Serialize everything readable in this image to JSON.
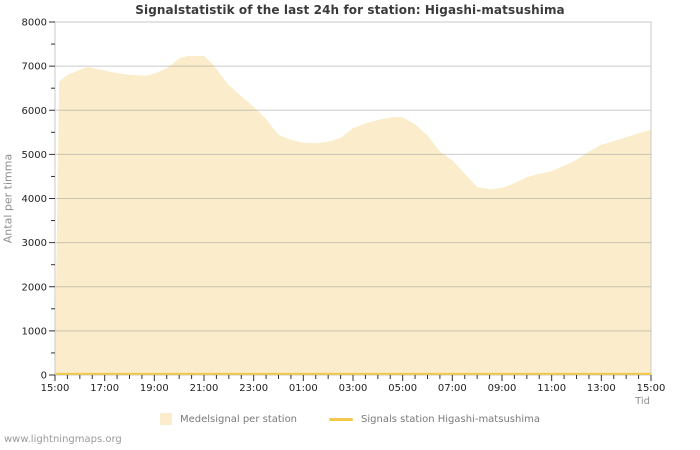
{
  "watermark": "www.lightningmaps.org",
  "chart_data": {
    "type": "area",
    "title": "Signalstatistik of the last 24h for station: Higashi-matsushima",
    "xlabel": "Tid",
    "ylabel": "Antal per timma",
    "ylim": [
      0,
      8000
    ],
    "y_major_step": 1000,
    "y_minor_step": 500,
    "x_range_minutes": 1440,
    "x_major_step_minutes": 120,
    "x_minor_step_minutes": 30,
    "x_tick_labels": [
      "15:00",
      "17:00",
      "19:00",
      "21:00",
      "23:00",
      "01:00",
      "03:00",
      "05:00",
      "07:00",
      "09:00",
      "11:00",
      "13:00",
      "15:00"
    ],
    "grid": true,
    "legend_position": "bottom",
    "colors": {
      "area_fill": "#FBEDCB",
      "station_line": "#F2C84B",
      "gridline": "#999999",
      "plot_border": "#C9C9C9",
      "tick": "#333333",
      "tick_label": "#222222",
      "muted_label": "#909090"
    },
    "series": [
      {
        "name": "Medelsignal per station",
        "kind": "area",
        "points": [
          [
            "15:00",
            400
          ],
          [
            "15:10",
            6650
          ],
          [
            "15:30",
            6800
          ],
          [
            "16:00",
            6920
          ],
          [
            "16:20",
            6980
          ],
          [
            "17:00",
            6900
          ],
          [
            "17:30",
            6840
          ],
          [
            "18:00",
            6800
          ],
          [
            "18:40",
            6780
          ],
          [
            "19:00",
            6830
          ],
          [
            "19:30",
            6950
          ],
          [
            "20:00",
            7180
          ],
          [
            "20:20",
            7230
          ],
          [
            "21:00",
            7230
          ],
          [
            "21:20",
            7050
          ],
          [
            "22:00",
            6570
          ],
          [
            "22:30",
            6320
          ],
          [
            "23:00",
            6080
          ],
          [
            "23:30",
            5800
          ],
          [
            "00:00",
            5440
          ],
          [
            "00:30",
            5330
          ],
          [
            "01:00",
            5265
          ],
          [
            "01:30",
            5250
          ],
          [
            "02:00",
            5290
          ],
          [
            "02:30",
            5370
          ],
          [
            "03:00",
            5590
          ],
          [
            "03:30",
            5700
          ],
          [
            "04:00",
            5780
          ],
          [
            "04:40",
            5850
          ],
          [
            "05:00",
            5840
          ],
          [
            "05:30",
            5680
          ],
          [
            "06:00",
            5430
          ],
          [
            "06:30",
            5060
          ],
          [
            "07:00",
            4870
          ],
          [
            "07:30",
            4560
          ],
          [
            "08:00",
            4260
          ],
          [
            "08:30",
            4210
          ],
          [
            "09:00",
            4240
          ],
          [
            "09:30",
            4350
          ],
          [
            "10:00",
            4480
          ],
          [
            "10:30",
            4560
          ],
          [
            "11:00",
            4620
          ],
          [
            "11:30",
            4740
          ],
          [
            "12:00",
            4880
          ],
          [
            "12:30",
            5060
          ],
          [
            "13:00",
            5220
          ],
          [
            "13:30",
            5300
          ],
          [
            "14:00",
            5390
          ],
          [
            "14:30",
            5480
          ],
          [
            "15:00",
            5560
          ]
        ]
      },
      {
        "name": "Signals station Higashi-matsushima",
        "kind": "line",
        "points": [
          [
            "15:00",
            25
          ],
          [
            "15:00",
            25
          ]
        ]
      }
    ]
  }
}
